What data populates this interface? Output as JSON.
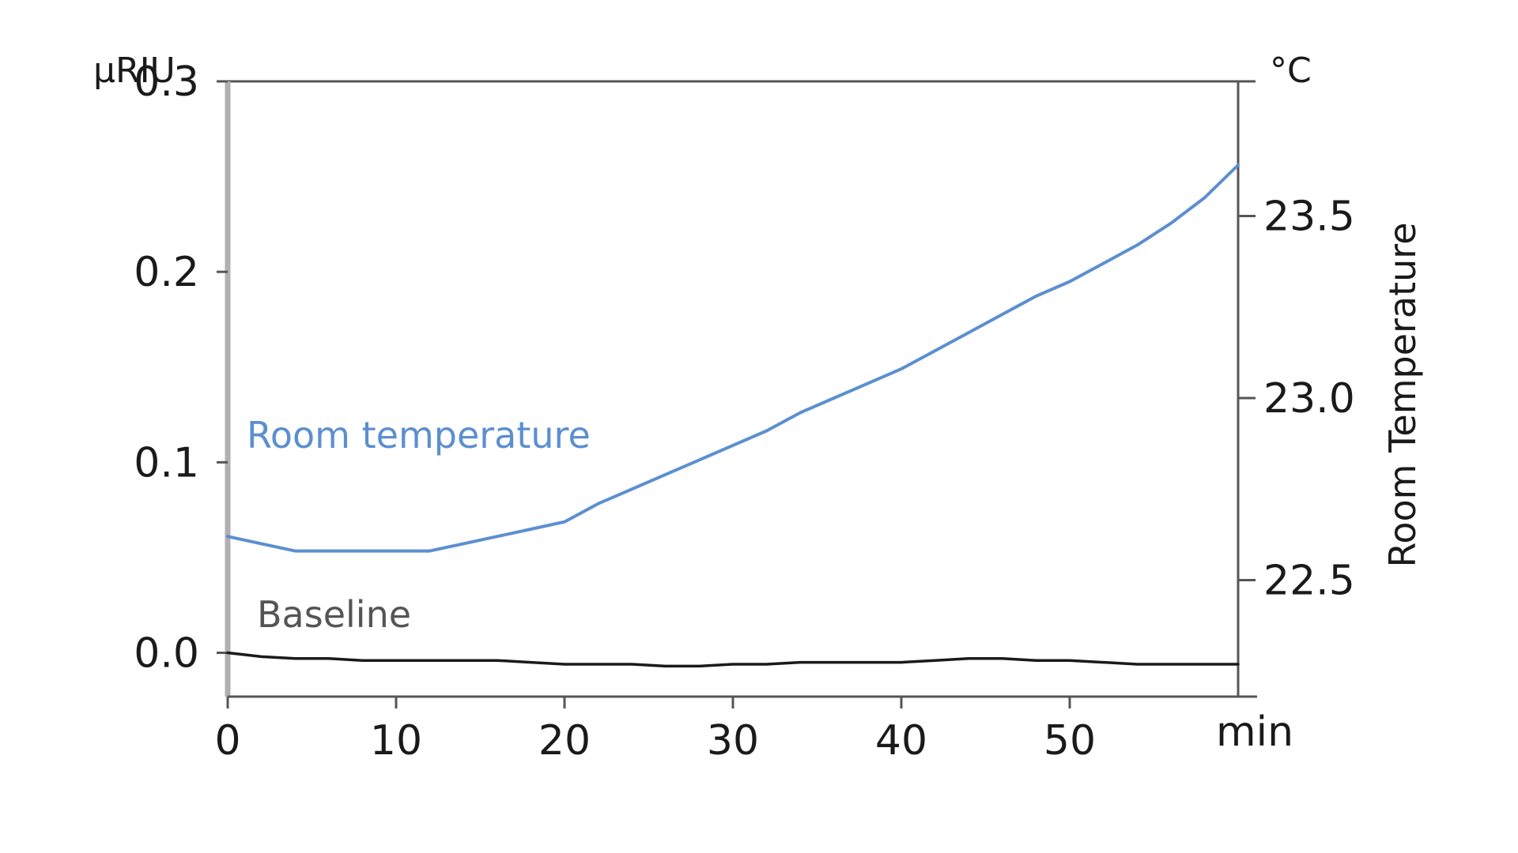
{
  "chart_data": {
    "type": "line",
    "title": "",
    "xlabel": "min",
    "ylabel": "µRIU",
    "y2label": "Room Temperature",
    "y2unit": "°C",
    "xlim": [
      0,
      60
    ],
    "ylim": [
      -0.023,
      0.3
    ],
    "y2lim": [
      22.18,
      23.87
    ],
    "x_ticks": [
      "0",
      "10",
      "20",
      "30",
      "40",
      "50"
    ],
    "y_ticks": [
      "0.0",
      "0.1",
      "0.2",
      "0.3"
    ],
    "y2_ticks": [
      "22.5",
      "23.0",
      "23.5"
    ],
    "x_tick_values": [
      0,
      10,
      20,
      30,
      40,
      50
    ],
    "y_tick_values": [
      0.0,
      0.1,
      0.2,
      0.3
    ],
    "y2_tick_values": [
      22.5,
      23.0,
      23.5
    ],
    "grid": false,
    "legend": "none",
    "series": [
      {
        "name": "Room temperature",
        "axis": "right",
        "color": "#5b8fd0",
        "x": [
          0,
          2,
          4,
          6,
          8,
          10,
          12,
          14,
          16,
          18,
          20,
          22,
          24,
          26,
          28,
          30,
          32,
          34,
          36,
          38,
          40,
          42,
          44,
          46,
          48,
          50,
          52,
          54,
          56,
          58,
          60
        ],
        "values": [
          22.62,
          22.6,
          22.58,
          22.58,
          22.58,
          22.58,
          22.58,
          22.6,
          22.62,
          22.64,
          22.66,
          22.71,
          22.75,
          22.79,
          22.83,
          22.87,
          22.91,
          22.96,
          23.0,
          23.04,
          23.08,
          23.13,
          23.18,
          23.23,
          23.28,
          23.32,
          23.37,
          23.42,
          23.48,
          23.55,
          23.64
        ]
      },
      {
        "name": "Baseline",
        "axis": "left",
        "color": "#1a1a1a",
        "x": [
          0,
          2,
          4,
          6,
          8,
          10,
          12,
          14,
          16,
          18,
          20,
          22,
          24,
          26,
          28,
          30,
          32,
          34,
          36,
          38,
          40,
          42,
          44,
          46,
          48,
          50,
          52,
          54,
          56,
          58,
          60
        ],
        "values": [
          0.0,
          -0.002,
          -0.003,
          -0.003,
          -0.004,
          -0.004,
          -0.004,
          -0.004,
          -0.004,
          -0.005,
          -0.006,
          -0.006,
          -0.006,
          -0.007,
          -0.007,
          -0.006,
          -0.006,
          -0.005,
          -0.005,
          -0.005,
          -0.005,
          -0.004,
          -0.003,
          -0.003,
          -0.004,
          -0.004,
          -0.005,
          -0.006,
          -0.006,
          -0.006,
          -0.006
        ]
      }
    ]
  }
}
